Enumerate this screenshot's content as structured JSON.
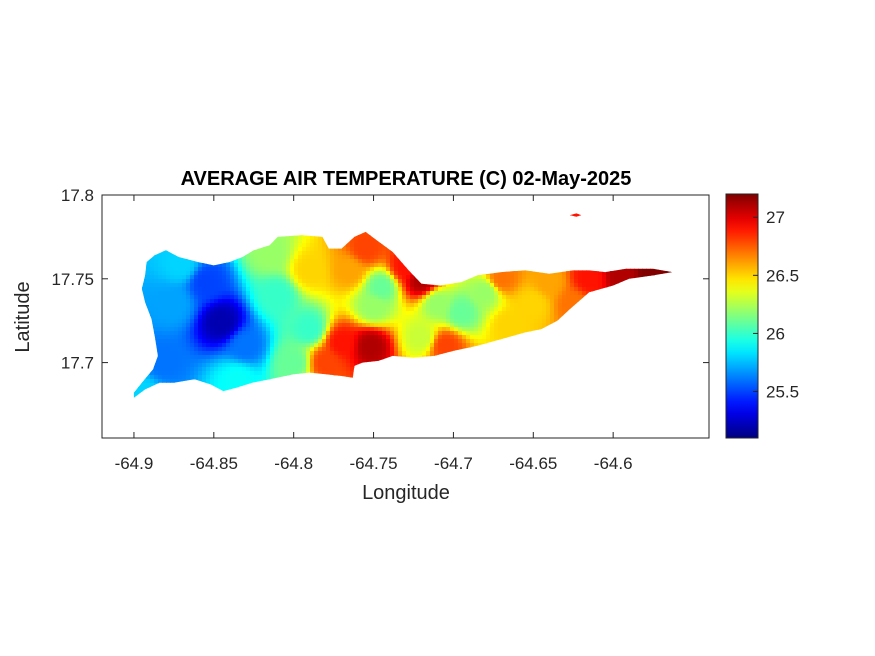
{
  "chart_data": {
    "type": "heatmap",
    "title": "AVERAGE AIR TEMPERATURE (C) 02-May-2025",
    "xlabel": "Longitude",
    "ylabel": "Latitude",
    "xlim": [
      -64.92,
      -64.54
    ],
    "ylim": [
      17.655,
      17.8
    ],
    "x_ticks": [
      {
        "value": -64.9,
        "label": "-64.9"
      },
      {
        "value": -64.85,
        "label": "-64.85"
      },
      {
        "value": -64.8,
        "label": "-64.8"
      },
      {
        "value": -64.75,
        "label": "-64.75"
      },
      {
        "value": -64.7,
        "label": "-64.7"
      },
      {
        "value": -64.65,
        "label": "-64.65"
      },
      {
        "value": -64.6,
        "label": "-64.6"
      }
    ],
    "y_ticks": [
      {
        "value": 17.7,
        "label": "17.7"
      },
      {
        "value": 17.75,
        "label": "17.75"
      },
      {
        "value": 17.8,
        "label": "17.8"
      }
    ],
    "colorbar": {
      "colormap": "jet",
      "range": [
        25.1,
        27.2
      ],
      "ticks": [
        {
          "value": 25.5,
          "label": "25.5"
        },
        {
          "value": 26,
          "label": "26"
        },
        {
          "value": 26.5,
          "label": "26.5"
        },
        {
          "value": 27,
          "label": "27"
        }
      ]
    },
    "grid": false,
    "island_outline": [
      [
        -64.9,
        17.679
      ],
      [
        -64.893,
        17.684
      ],
      [
        -64.884,
        17.688
      ],
      [
        -64.875,
        17.688
      ],
      [
        -64.862,
        17.69
      ],
      [
        -64.852,
        17.687
      ],
      [
        -64.844,
        17.683
      ],
      [
        -64.836,
        17.685
      ],
      [
        -64.826,
        17.688
      ],
      [
        -64.815,
        17.69
      ],
      [
        -64.8,
        17.693
      ],
      [
        -64.79,
        17.694
      ],
      [
        -64.78,
        17.693
      ],
      [
        -64.77,
        17.692
      ],
      [
        -64.763,
        17.691
      ],
      [
        -64.762,
        17.698
      ],
      [
        -64.757,
        17.7
      ],
      [
        -64.747,
        17.701
      ],
      [
        -64.738,
        17.704
      ],
      [
        -64.725,
        17.703
      ],
      [
        -64.712,
        17.704
      ],
      [
        -64.7,
        17.707
      ],
      [
        -64.685,
        17.71
      ],
      [
        -64.67,
        17.714
      ],
      [
        -64.655,
        17.718
      ],
      [
        -64.645,
        17.72
      ],
      [
        -64.635,
        17.725
      ],
      [
        -64.627,
        17.732
      ],
      [
        -64.615,
        17.742
      ],
      [
        -64.6,
        17.746
      ],
      [
        -64.59,
        17.75
      ],
      [
        -64.575,
        17.752
      ],
      [
        -64.563,
        17.754
      ],
      [
        -64.575,
        17.756
      ],
      [
        -64.592,
        17.756
      ],
      [
        -64.605,
        17.754
      ],
      [
        -64.615,
        17.755
      ],
      [
        -64.625,
        17.755
      ],
      [
        -64.64,
        17.753
      ],
      [
        -64.655,
        17.755
      ],
      [
        -64.67,
        17.754
      ],
      [
        -64.685,
        17.752
      ],
      [
        -64.695,
        17.748
      ],
      [
        -64.708,
        17.746
      ],
      [
        -64.72,
        17.747
      ],
      [
        -64.728,
        17.755
      ],
      [
        -64.738,
        17.766
      ],
      [
        -64.748,
        17.773
      ],
      [
        -64.755,
        17.778
      ],
      [
        -64.762,
        17.775
      ],
      [
        -64.77,
        17.768
      ],
      [
        -64.778,
        17.768
      ],
      [
        -64.782,
        17.775
      ],
      [
        -64.795,
        17.776
      ],
      [
        -64.81,
        17.775
      ],
      [
        -64.815,
        17.77
      ],
      [
        -64.825,
        17.767
      ],
      [
        -64.832,
        17.763
      ],
      [
        -64.84,
        17.76
      ],
      [
        -64.85,
        17.758
      ],
      [
        -64.86,
        17.76
      ],
      [
        -64.872,
        17.763
      ],
      [
        -64.88,
        17.767
      ],
      [
        -64.887,
        17.764
      ],
      [
        -64.892,
        17.76
      ],
      [
        -64.893,
        17.752
      ],
      [
        -64.895,
        17.744
      ],
      [
        -64.893,
        17.736
      ],
      [
        -64.889,
        17.726
      ],
      [
        -64.887,
        17.716
      ],
      [
        -64.885,
        17.704
      ],
      [
        -64.888,
        17.696
      ],
      [
        -64.895,
        17.688
      ],
      [
        -64.9,
        17.682
      ]
    ],
    "islet_outline": [
      [
        -64.627,
        17.788
      ],
      [
        -64.623,
        17.789
      ],
      [
        -64.62,
        17.788
      ],
      [
        -64.623,
        17.787
      ]
    ],
    "temperature_field": [
      {
        "lon": -64.845,
        "lat": 17.724,
        "value": 25.2
      },
      {
        "lon": -64.83,
        "lat": 17.71,
        "value": 25.6
      },
      {
        "lon": -64.855,
        "lat": 17.748,
        "value": 25.5
      },
      {
        "lon": -64.875,
        "lat": 17.735,
        "value": 25.7
      },
      {
        "lon": -64.882,
        "lat": 17.7,
        "value": 25.6
      },
      {
        "lon": -64.87,
        "lat": 17.758,
        "value": 25.8
      },
      {
        "lon": -64.81,
        "lat": 17.74,
        "value": 26.0
      },
      {
        "lon": -64.815,
        "lat": 17.765,
        "value": 26.2
      },
      {
        "lon": -64.79,
        "lat": 17.72,
        "value": 26.0
      },
      {
        "lon": -64.79,
        "lat": 17.755,
        "value": 26.5
      },
      {
        "lon": -64.752,
        "lat": 17.71,
        "value": 27.1
      },
      {
        "lon": -64.77,
        "lat": 17.712,
        "value": 26.9
      },
      {
        "lon": -64.78,
        "lat": 17.7,
        "value": 26.8
      },
      {
        "lon": -64.75,
        "lat": 17.733,
        "value": 26.2
      },
      {
        "lon": -64.745,
        "lat": 17.745,
        "value": 26.1
      },
      {
        "lon": -64.755,
        "lat": 17.768,
        "value": 26.8
      },
      {
        "lon": -64.765,
        "lat": 17.755,
        "value": 26.6
      },
      {
        "lon": -64.73,
        "lat": 17.757,
        "value": 26.9
      },
      {
        "lon": -64.72,
        "lat": 17.749,
        "value": 27.1
      },
      {
        "lon": -64.71,
        "lat": 17.735,
        "value": 26.2
      },
      {
        "lon": -64.695,
        "lat": 17.73,
        "value": 26.1
      },
      {
        "lon": -64.72,
        "lat": 17.715,
        "value": 26.3
      },
      {
        "lon": -64.705,
        "lat": 17.71,
        "value": 26.8
      },
      {
        "lon": -64.68,
        "lat": 17.742,
        "value": 26.2
      },
      {
        "lon": -64.665,
        "lat": 17.722,
        "value": 26.5
      },
      {
        "lon": -64.67,
        "lat": 17.75,
        "value": 26.7
      },
      {
        "lon": -64.65,
        "lat": 17.735,
        "value": 26.5
      },
      {
        "lon": -64.64,
        "lat": 17.748,
        "value": 26.6
      },
      {
        "lon": -64.625,
        "lat": 17.735,
        "value": 26.7
      },
      {
        "lon": -64.615,
        "lat": 17.75,
        "value": 26.9
      },
      {
        "lon": -64.595,
        "lat": 17.752,
        "value": 27.1
      },
      {
        "lon": -64.575,
        "lat": 17.754,
        "value": 27.2
      },
      {
        "lon": -64.835,
        "lat": 17.69,
        "value": 25.9
      },
      {
        "lon": -64.895,
        "lat": 17.682,
        "value": 25.8
      },
      {
        "lon": -64.8,
        "lat": 17.7,
        "value": 26.1
      },
      {
        "lon": -64.622,
        "lat": 17.788,
        "value": 26.9
      }
    ]
  }
}
